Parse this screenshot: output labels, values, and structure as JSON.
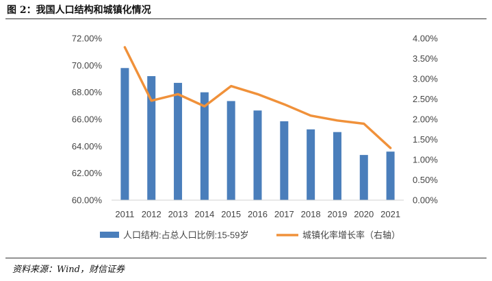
{
  "figure": {
    "title": "图 2：我国人口结构和城镇化情况",
    "source": "资料来源：Wind，财信证券"
  },
  "chart_data": {
    "type": "bar",
    "categories": [
      "2011",
      "2012",
      "2013",
      "2014",
      "2015",
      "2016",
      "2017",
      "2018",
      "2019",
      "2020",
      "2021"
    ],
    "series": [
      {
        "name": "人口结构:占总人口比例:15-59岁",
        "type": "bar",
        "axis": "left",
        "color": "#4a7ebb",
        "values": [
          69.8,
          69.2,
          68.7,
          68.0,
          67.35,
          66.65,
          65.85,
          65.25,
          65.05,
          63.35,
          63.6
        ]
      },
      {
        "name": "城镇化率增长率（右轴）",
        "type": "line",
        "axis": "right",
        "color": "#f0913a",
        "values": [
          3.78,
          2.46,
          2.62,
          2.32,
          2.82,
          2.62,
          2.37,
          2.09,
          1.97,
          1.89,
          1.29
        ]
      }
    ],
    "y_left": {
      "ylim": [
        60,
        72
      ],
      "ticks": [
        60,
        62,
        64,
        66,
        68,
        70,
        72
      ],
      "tick_labels": [
        "60.00%",
        "62.00%",
        "64.00%",
        "66.00%",
        "68.00%",
        "70.00%",
        "72.00%"
      ]
    },
    "y_right": {
      "ylim": [
        0,
        4
      ],
      "ticks": [
        0,
        0.5,
        1,
        1.5,
        2,
        2.5,
        3,
        3.5,
        4
      ],
      "tick_labels": [
        "0.00%",
        "0.50%",
        "1.00%",
        "1.50%",
        "2.00%",
        "2.50%",
        "3.00%",
        "3.50%",
        "4.00%"
      ]
    },
    "grid": false,
    "legend_position": "bottom"
  }
}
